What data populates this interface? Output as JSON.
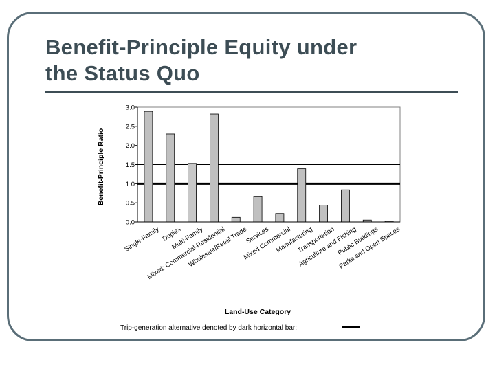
{
  "slide": {
    "title_line1": "Benefit-Principle Equity under",
    "title_line2": "the Status Quo"
  },
  "chart_data": {
    "type": "bar",
    "categories": [
      "Single-Family",
      "Duplex",
      "Multi-Family",
      "Mixed: Commercial-Residential",
      "Wholesale/Retail Trade",
      "Services",
      "Mixed Commercial",
      "Manufacturing",
      "Transportation",
      "Agriculture and Fishing",
      "Public Buildings",
      "Parks and Open Spaces"
    ],
    "values": [
      2.89,
      2.3,
      1.53,
      2.82,
      0.12,
      0.66,
      0.22,
      1.39,
      0.44,
      0.84,
      0.05,
      0.02
    ],
    "bar_colors": [
      "#c0c0c0",
      "#c0c0c0",
      "#c8c8c8",
      "#c0c0c0",
      "#c0c0c0",
      "#c0c0c0",
      "#c0c0c0",
      "#c0c0c0",
      "#c0c0c0",
      "#c0c0c0",
      "#c0c0c0",
      "#c0c0c0"
    ],
    "ylabel": "Benefit-Principle Ratio",
    "xlabel": "Land-Use Category",
    "ylim": [
      0,
      3.0
    ],
    "yticks": [
      "0.0",
      "0.5",
      "1.0",
      "1.5",
      "2.0",
      "2.5",
      "3.0"
    ],
    "ytick_values": [
      0,
      0.5,
      1.0,
      1.5,
      2.0,
      2.5,
      3.0
    ],
    "reference_lines": [
      {
        "y": 1.0,
        "style": "dark thick"
      },
      {
        "y": 1.5,
        "style": "thin"
      }
    ],
    "note": "Trip-generation alternative denoted by dark horizontal bar:",
    "colors": {
      "bar_fill": "#c0c0c0",
      "bar_stroke": "#000000",
      "reference_bar": "#000000"
    }
  }
}
